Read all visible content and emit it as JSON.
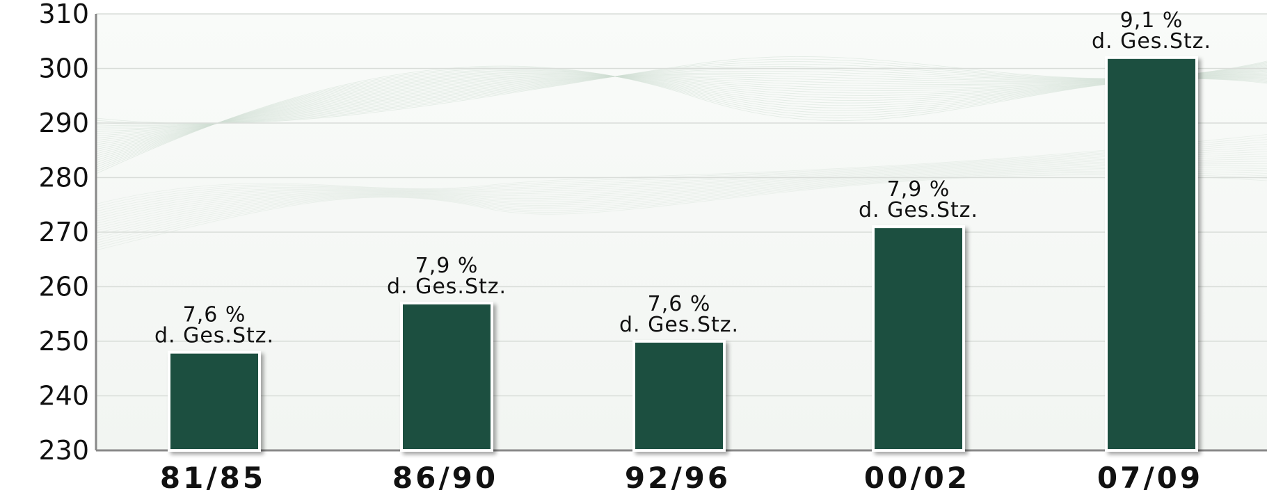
{
  "chart_data": {
    "type": "bar",
    "title": "",
    "xlabel": "",
    "ylabel": "",
    "categories": [
      "81/85",
      "86/90",
      "92/96",
      "00/02",
      "07/09"
    ],
    "values": [
      248,
      257,
      250,
      271,
      302
    ],
    "data_labels": [
      {
        "line1": "7,6 %",
        "line2": "d. Ges.Stz."
      },
      {
        "line1": "7,9 %",
        "line2": "d. Ges.Stz."
      },
      {
        "line1": "7,6 %",
        "line2": "d. Ges.Stz."
      },
      {
        "line1": "7,9 %",
        "line2": "d. Ges.Stz."
      },
      {
        "line1": "9,1 %",
        "line2": "d. Ges.Stz."
      }
    ],
    "ylim": [
      230,
      310
    ],
    "yticks": [
      "230",
      "240",
      "250",
      "260",
      "270",
      "280",
      "290",
      "300",
      "310"
    ],
    "grid": true,
    "colors": {
      "bar": "#1f5040",
      "bar_border": "#ffffff",
      "grid": "#d9ddd9",
      "axis": "#888888",
      "plot_bg": "#f6f8f6"
    }
  }
}
